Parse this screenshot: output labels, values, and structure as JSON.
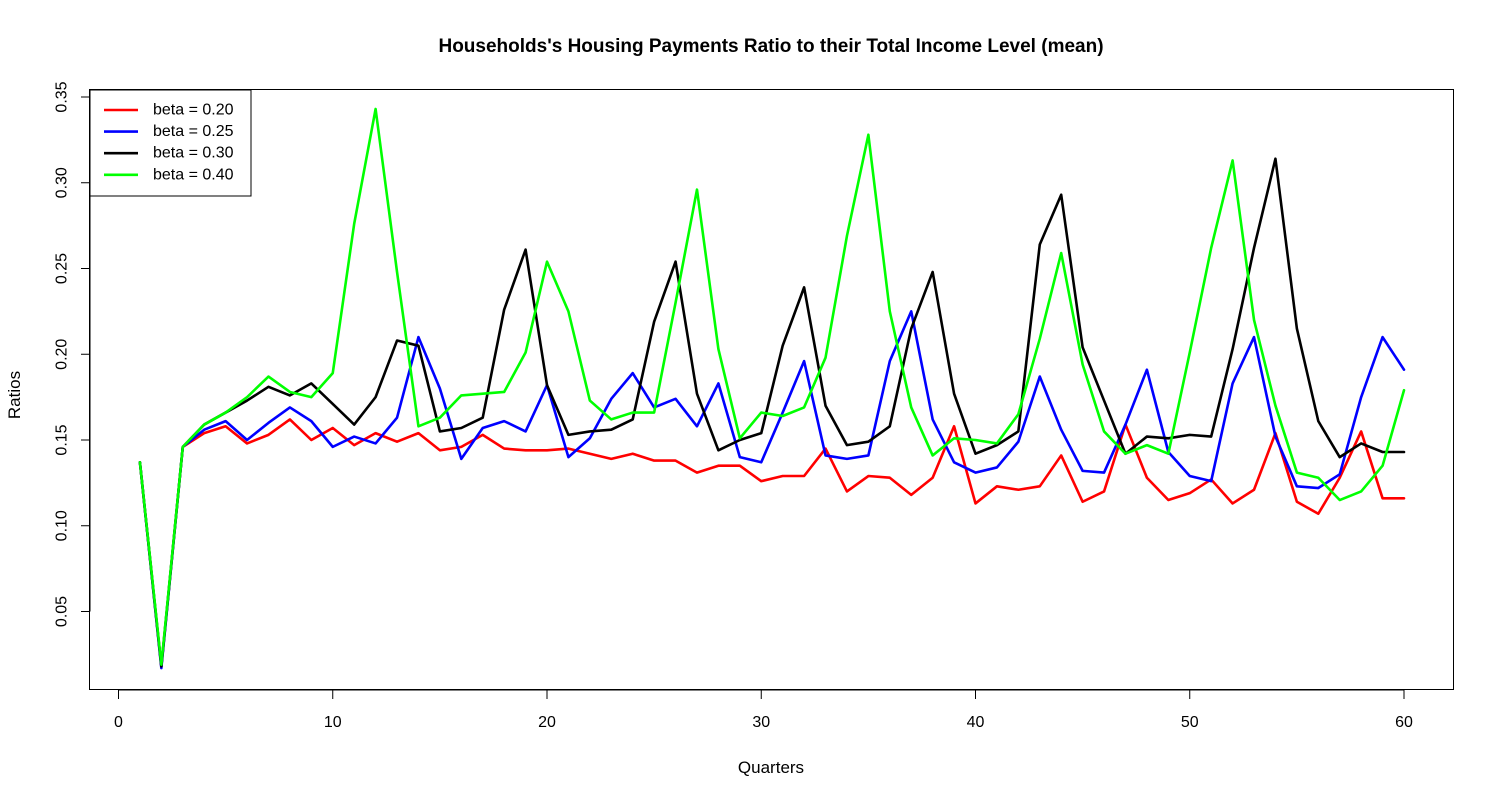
{
  "chart_data": {
    "type": "line",
    "title": "Households's Housing Payments Ratio to their Total Income Level (mean)",
    "xlabel": "Quarters",
    "ylabel": "Ratios",
    "xlim": [
      0,
      62
    ],
    "ylim": [
      0.0,
      0.35
    ],
    "xticks": [
      0,
      10,
      20,
      30,
      40,
      50,
      60
    ],
    "yticks": [
      0.05,
      0.1,
      0.15,
      0.2,
      0.25,
      0.3,
      0.35
    ],
    "ytick_labels": [
      "0.05",
      "0.10",
      "0.15",
      "0.20",
      "0.25",
      "0.30",
      "0.35"
    ],
    "grid": false,
    "legend_position": "top-left",
    "x": [
      1,
      2,
      3,
      4,
      5,
      6,
      7,
      8,
      9,
      10,
      11,
      12,
      13,
      14,
      15,
      16,
      17,
      18,
      19,
      20,
      21,
      22,
      23,
      24,
      25,
      26,
      27,
      28,
      29,
      30,
      31,
      32,
      33,
      34,
      35,
      36,
      37,
      38,
      39,
      40,
      41,
      42,
      43,
      44,
      45,
      46,
      47,
      48,
      49,
      50,
      51,
      52,
      53,
      54,
      55,
      56,
      57,
      58,
      59,
      60
    ],
    "series": [
      {
        "name": "beta = 0.20",
        "color": "#ff0000",
        "values": [
          0.137,
          0.018,
          0.146,
          0.154,
          0.158,
          0.148,
          0.153,
          0.162,
          0.15,
          0.157,
          0.147,
          0.154,
          0.149,
          0.154,
          0.144,
          0.146,
          0.153,
          0.145,
          0.144,
          0.144,
          0.145,
          0.142,
          0.139,
          0.142,
          0.138,
          0.138,
          0.131,
          0.135,
          0.135,
          0.126,
          0.129,
          0.129,
          0.145,
          0.12,
          0.129,
          0.128,
          0.118,
          0.128,
          0.158,
          0.113,
          0.123,
          0.121,
          0.123,
          0.141,
          0.114,
          0.12,
          0.159,
          0.128,
          0.115,
          0.119,
          0.127,
          0.113,
          0.121,
          0.154,
          0.114,
          0.107,
          0.128,
          0.155,
          0.116,
          0.116
        ]
      },
      {
        "name": "beta = 0.25",
        "color": "#0000ff",
        "values": [
          0.137,
          0.017,
          0.146,
          0.156,
          0.161,
          0.15,
          0.16,
          0.169,
          0.161,
          0.146,
          0.152,
          0.148,
          0.163,
          0.21,
          0.18,
          0.139,
          0.157,
          0.161,
          0.155,
          0.182,
          0.14,
          0.151,
          0.174,
          0.189,
          0.169,
          0.174,
          0.158,
          0.183,
          0.14,
          0.137,
          0.166,
          0.196,
          0.141,
          0.139,
          0.141,
          0.196,
          0.225,
          0.162,
          0.137,
          0.131,
          0.134,
          0.149,
          0.187,
          0.156,
          0.132,
          0.131,
          0.159,
          0.191,
          0.143,
          0.129,
          0.126,
          0.183,
          0.21,
          0.152,
          0.123,
          0.122,
          0.13,
          0.175,
          0.21,
          0.191
        ]
      },
      {
        "name": "beta = 0.30",
        "color": "#000000",
        "values": [
          0.137,
          0.018,
          0.146,
          0.159,
          0.166,
          0.173,
          0.181,
          0.176,
          0.183,
          0.171,
          0.159,
          0.175,
          0.208,
          0.205,
          0.155,
          0.157,
          0.163,
          0.226,
          0.261,
          0.182,
          0.153,
          0.155,
          0.156,
          0.162,
          0.219,
          0.254,
          0.177,
          0.144,
          0.15,
          0.154,
          0.205,
          0.239,
          0.17,
          0.147,
          0.149,
          0.158,
          0.215,
          0.248,
          0.177,
          0.142,
          0.147,
          0.155,
          0.264,
          0.293,
          0.204,
          0.173,
          0.142,
          0.152,
          0.151,
          0.153,
          0.152,
          0.203,
          0.262,
          0.314,
          0.215,
          0.161,
          0.14,
          0.148,
          0.143,
          0.143
        ]
      },
      {
        "name": "beta = 0.40",
        "color": "#00ff00",
        "values": [
          0.137,
          0.019,
          0.146,
          0.159,
          0.166,
          0.175,
          0.187,
          0.178,
          0.175,
          0.189,
          0.276,
          0.343,
          0.248,
          0.158,
          0.163,
          0.176,
          0.177,
          0.178,
          0.201,
          0.254,
          0.225,
          0.173,
          0.162,
          0.166,
          0.166,
          0.23,
          0.296,
          0.203,
          0.151,
          0.166,
          0.164,
          0.169,
          0.198,
          0.269,
          0.328,
          0.225,
          0.169,
          0.141,
          0.151,
          0.15,
          0.148,
          0.165,
          0.209,
          0.259,
          0.194,
          0.155,
          0.142,
          0.147,
          0.142,
          0.201,
          0.262,
          0.313,
          0.22,
          0.17,
          0.131,
          0.128,
          0.115,
          0.12,
          0.135,
          0.179
        ]
      }
    ]
  }
}
